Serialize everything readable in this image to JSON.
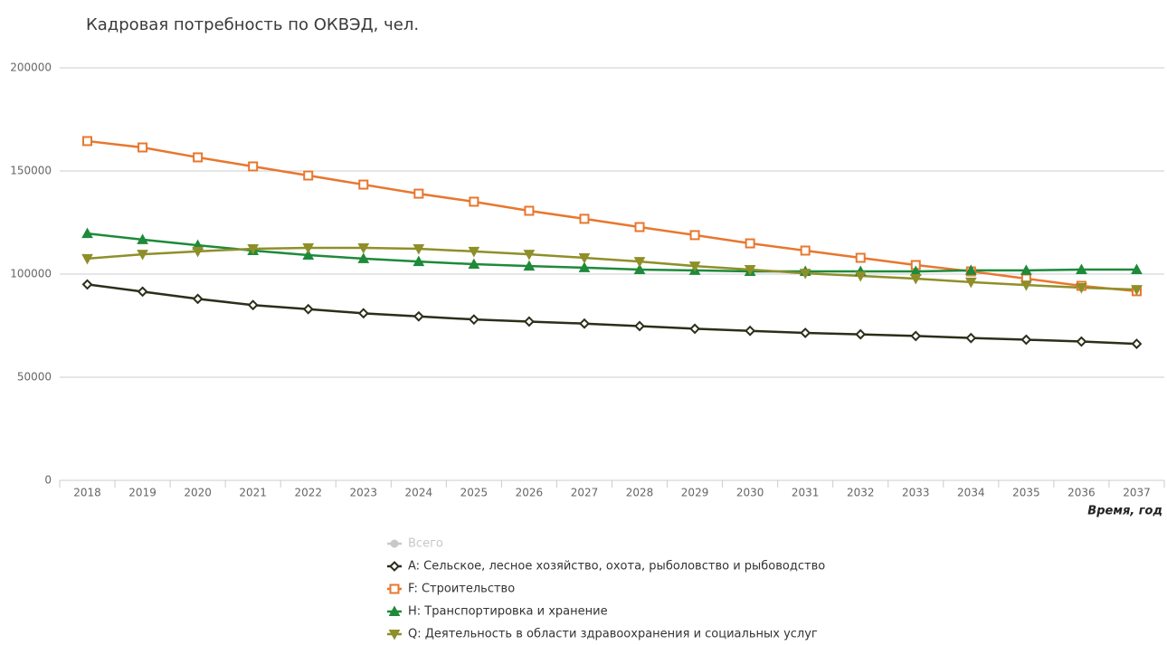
{
  "chart_data": {
    "type": "line",
    "title": "Кадровая потребность по ОКВЭД, чел.",
    "x_label": "Время, год",
    "categories": [
      "2018",
      "2019",
      "2020",
      "2021",
      "2022",
      "2023",
      "2024",
      "2025",
      "2026",
      "2027",
      "2028",
      "2029",
      "2030",
      "2031",
      "2032",
      "2033",
      "2034",
      "2035",
      "2036",
      "2037"
    ],
    "ylim": [
      0,
      200000
    ],
    "yticks": [
      0,
      50000,
      100000,
      150000,
      200000
    ],
    "grid": true,
    "inactive_legend": [
      {
        "name": "Всего",
        "color": "#c8c8c8"
      }
    ],
    "series": [
      {
        "name": "A: Сельское, лесное хозяйство, охота, рыболовство и рыбоводство",
        "color": "#2b2e1a",
        "marker": "diamond",
        "values": [
          95000,
          91500,
          88000,
          85000,
          83000,
          81000,
          79500,
          78000,
          77000,
          76000,
          74800,
          73500,
          72500,
          71500,
          70800,
          70000,
          69000,
          68200,
          67300,
          66200
        ]
      },
      {
        "name": "F: Строительство",
        "color": "#e8772e",
        "marker": "square",
        "values": [
          164500,
          161400,
          156600,
          152200,
          147800,
          143400,
          139000,
          135100,
          130700,
          126800,
          122800,
          118900,
          114900,
          111400,
          107900,
          104400,
          101300,
          97800,
          94300,
          91700
        ]
      },
      {
        "name": "H: Транспортировка и хранение",
        "color": "#1e8a3a",
        "marker": "triangle-up",
        "values": [
          119700,
          116700,
          114000,
          111400,
          109200,
          107500,
          106100,
          104800,
          103900,
          103100,
          102200,
          101800,
          101300,
          101300,
          101300,
          101300,
          101800,
          101800,
          102200,
          102200
        ]
      },
      {
        "name": "Q: Деятельность в области здравоохранения и социальных услуг",
        "color": "#8f8f2a",
        "marker": "triangle-down",
        "values": [
          107500,
          109600,
          111000,
          112300,
          112700,
          112700,
          112300,
          111000,
          109600,
          107900,
          106100,
          103900,
          102200,
          100400,
          99100,
          97800,
          96100,
          94700,
          93400,
          92500
        ]
      }
    ]
  }
}
